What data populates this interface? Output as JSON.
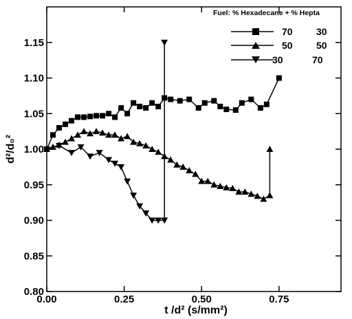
{
  "chart_data": {
    "type": "line",
    "title": "",
    "xlabel": "t /d² (s/mm²)",
    "ylabel": "d²/d₀²",
    "xlim": [
      0,
      0.95
    ],
    "ylim": [
      0.8,
      1.2
    ],
    "x_ticks": [
      "0.00",
      "0.25",
      "0.50",
      "0.75"
    ],
    "y_ticks": [
      "0.80",
      "0.85",
      "0.90",
      "0.95",
      "1.00",
      "1.05",
      "1.10",
      "1.15"
    ],
    "legend": {
      "title": "Fuel: % Hexadecane + % Hepta",
      "placement": "top-right",
      "entries": [
        {
          "col1": "70",
          "col2": "30"
        },
        {
          "col1": "50",
          "col2": "50"
        },
        {
          "col1": "30",
          "col2": "70"
        }
      ]
    },
    "series": [
      {
        "label": "70 30",
        "marker": "square",
        "color": "#000000",
        "points": [
          [
            0.0,
            1.0
          ],
          [
            0.02,
            1.02
          ],
          [
            0.04,
            1.03
          ],
          [
            0.06,
            1.035
          ],
          [
            0.08,
            1.04
          ],
          [
            0.1,
            1.045
          ],
          [
            0.12,
            1.045
          ],
          [
            0.14,
            1.046
          ],
          [
            0.16,
            1.047
          ],
          [
            0.18,
            1.047
          ],
          [
            0.2,
            1.05
          ],
          [
            0.22,
            1.045
          ],
          [
            0.24,
            1.058
          ],
          [
            0.26,
            1.05
          ],
          [
            0.28,
            1.065
          ],
          [
            0.3,
            1.06
          ],
          [
            0.32,
            1.058
          ],
          [
            0.34,
            1.065
          ],
          [
            0.36,
            1.06
          ],
          [
            0.38,
            1.072
          ],
          [
            0.4,
            1.07
          ],
          [
            0.43,
            1.068
          ],
          [
            0.46,
            1.07
          ],
          [
            0.49,
            1.058
          ],
          [
            0.51,
            1.065
          ],
          [
            0.54,
            1.068
          ],
          [
            0.56,
            1.06
          ],
          [
            0.58,
            1.056
          ],
          [
            0.61,
            1.055
          ],
          [
            0.63,
            1.065
          ],
          [
            0.66,
            1.07
          ],
          [
            0.69,
            1.058
          ],
          [
            0.71,
            1.063
          ],
          [
            0.75,
            1.1
          ]
        ]
      },
      {
        "label": "50 50",
        "marker": "triangle-up",
        "color": "#000000",
        "points": [
          [
            0.0,
            1.0
          ],
          [
            0.02,
            1.003
          ],
          [
            0.04,
            1.006
          ],
          [
            0.06,
            1.01
          ],
          [
            0.08,
            1.015
          ],
          [
            0.1,
            1.02
          ],
          [
            0.12,
            1.025
          ],
          [
            0.14,
            1.022
          ],
          [
            0.16,
            1.025
          ],
          [
            0.18,
            1.023
          ],
          [
            0.2,
            1.02
          ],
          [
            0.22,
            1.02
          ],
          [
            0.24,
            1.015
          ],
          [
            0.26,
            1.018
          ],
          [
            0.28,
            1.01
          ],
          [
            0.3,
            1.008
          ],
          [
            0.32,
            1.005
          ],
          [
            0.34,
            1.0
          ],
          [
            0.36,
            0.996
          ],
          [
            0.38,
            0.99
          ],
          [
            0.4,
            0.985
          ],
          [
            0.42,
            0.978
          ],
          [
            0.44,
            0.975
          ],
          [
            0.46,
            0.97
          ],
          [
            0.48,
            0.965
          ],
          [
            0.5,
            0.955
          ],
          [
            0.52,
            0.955
          ],
          [
            0.54,
            0.95
          ],
          [
            0.56,
            0.948
          ],
          [
            0.58,
            0.946
          ],
          [
            0.6,
            0.945
          ],
          [
            0.62,
            0.94
          ],
          [
            0.64,
            0.94
          ],
          [
            0.66,
            0.937
          ],
          [
            0.68,
            0.934
          ],
          [
            0.7,
            0.93
          ],
          [
            0.72,
            0.935
          ],
          [
            0.72,
            1.0
          ]
        ]
      },
      {
        "label": "30 70",
        "marker": "triangle-down",
        "color": "#000000",
        "points": [
          [
            0.0,
            1.0
          ],
          [
            0.04,
            1.005
          ],
          [
            0.08,
            0.995
          ],
          [
            0.11,
            1.003
          ],
          [
            0.14,
            0.99
          ],
          [
            0.17,
            0.995
          ],
          [
            0.2,
            0.985
          ],
          [
            0.22,
            0.98
          ],
          [
            0.24,
            0.975
          ],
          [
            0.26,
            0.955
          ],
          [
            0.28,
            0.935
          ],
          [
            0.3,
            0.92
          ],
          [
            0.32,
            0.91
          ],
          [
            0.34,
            0.9
          ],
          [
            0.36,
            0.9
          ],
          [
            0.38,
            0.9
          ],
          [
            0.38,
            1.15
          ]
        ]
      }
    ]
  }
}
